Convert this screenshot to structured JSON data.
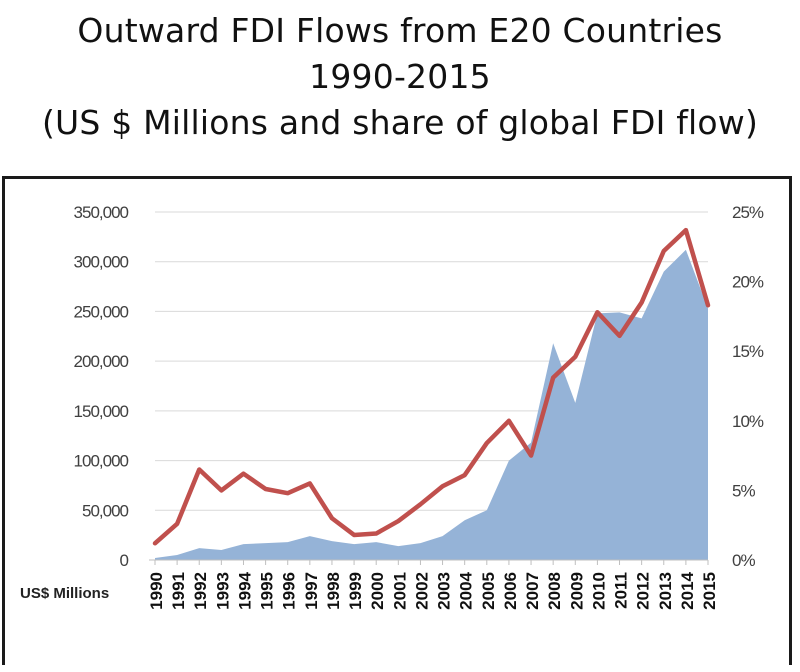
{
  "title": {
    "line1": "Outward FDI Flows from E20 Countries",
    "line2": "1990-2015",
    "line3": "(US $ Millions and share of global FDI flow)"
  },
  "colors": {
    "area": "#95B3D7",
    "line": "#C0504D",
    "grid": "#d9d9d9",
    "axis_text": "#404040"
  },
  "chart_data": {
    "type": "area",
    "title": "Outward FDI Flows from E20 Countries 1990-2015 (US $ Millions and share of global FDI flow)",
    "ylabel": "US$ Millions",
    "categories": [
      "1990",
      "1991",
      "1992",
      "1993",
      "1994",
      "1995",
      "1996",
      "1997",
      "1998",
      "1999",
      "2000",
      "2001",
      "2002",
      "2003",
      "2004",
      "2005",
      "2006",
      "2007",
      "2008",
      "2009",
      "2010",
      "2011",
      "2012",
      "2013",
      "2014",
      "2015"
    ],
    "ylim": [
      0,
      350000
    ],
    "y2lim": [
      0,
      25
    ],
    "yticks": [
      "0",
      "50,000",
      "100,000",
      "150,000",
      "200,000",
      "250,000",
      "300,000",
      "350,000"
    ],
    "y2ticks": [
      "0%",
      "5%",
      "10%",
      "15%",
      "20%",
      "25%"
    ],
    "grid": true,
    "legend": "none",
    "series": [
      {
        "type": "area",
        "axis": "left",
        "values": [
          2000,
          5000,
          12000,
          10000,
          16000,
          17000,
          18000,
          24000,
          19000,
          16000,
          18000,
          14000,
          17000,
          24000,
          40000,
          50000,
          100000,
          118000,
          218000,
          158000,
          248000,
          249000,
          243000,
          290000,
          312000,
          253000
        ]
      },
      {
        "type": "line",
        "axis": "right",
        "values": [
          1.2,
          2.6,
          6.5,
          5.0,
          6.2,
          5.1,
          4.8,
          5.5,
          3.0,
          1.8,
          1.9,
          2.8,
          4.0,
          5.3,
          6.1,
          8.4,
          10.0,
          7.5,
          13.1,
          14.6,
          17.8,
          16.1,
          18.5,
          22.2,
          23.7,
          18.3
        ]
      }
    ]
  }
}
